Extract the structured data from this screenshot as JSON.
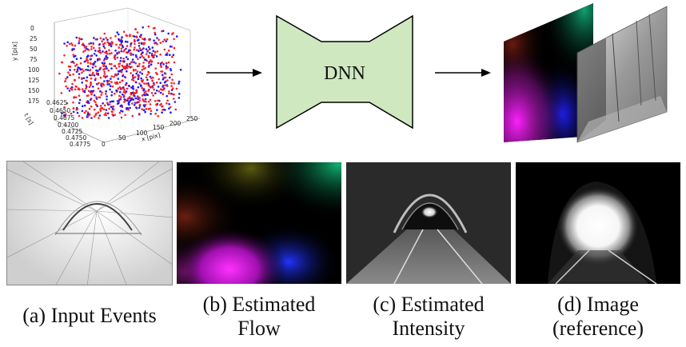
{
  "scatter3d": {
    "y_axis_label": "y [pix]",
    "x_axis_label": "x [pix]",
    "t_axis_label": "t [s]",
    "y_ticks": [
      "0",
      "25",
      "50",
      "75",
      "100",
      "125",
      "150",
      "175"
    ],
    "t_ticks": [
      "0.4625",
      "0.4650",
      "0.4675",
      "0.4700",
      "0.4725",
      "0.4750",
      "0.4775"
    ],
    "x_ticks": [
      "0",
      "50",
      "100",
      "150",
      "200",
      "250"
    ],
    "colors": {
      "positive": "#ff2020",
      "negative": "#1a1aff"
    }
  },
  "network": {
    "label": "DNN",
    "fill": "#cfe8c0"
  },
  "captions": {
    "a": [
      "(a) Input Events"
    ],
    "b": [
      "(b) Estimated",
      "Flow"
    ],
    "c": [
      "(c) Estimated",
      "Intensity"
    ],
    "d": [
      "(d) Image",
      "(reference)"
    ]
  }
}
